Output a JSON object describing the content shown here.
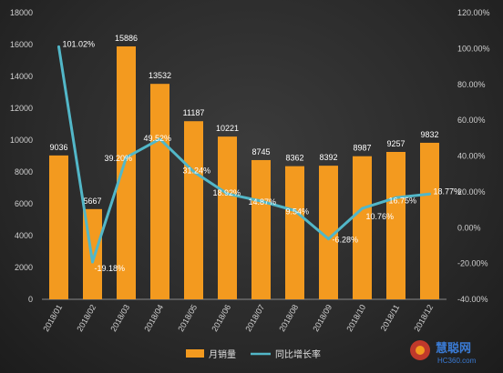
{
  "chart_data": {
    "type": "bar+line",
    "categories": [
      "2018/01",
      "2018/02",
      "2018/03",
      "2018/04",
      "2018/05",
      "2018/06",
      "2018/07",
      "2018/08",
      "2018/09",
      "2018/10",
      "2018/11",
      "2018/12"
    ],
    "series": [
      {
        "name": "月销量",
        "type": "bar",
        "axis": "left",
        "values": [
          9036,
          5667,
          15886,
          13532,
          11187,
          10221,
          8745,
          8362,
          8392,
          8987,
          9257,
          9832
        ],
        "labels": [
          "9036",
          "5667",
          "15886",
          "13532",
          "11187",
          "10221",
          "8745",
          "8362",
          "8392",
          "8987",
          "9257",
          "9832"
        ],
        "color": "#f39a1f"
      },
      {
        "name": "同比增长率",
        "type": "line",
        "axis": "right",
        "values": [
          101.02,
          -19.18,
          39.2,
          49.52,
          31.24,
          18.92,
          14.87,
          9.54,
          -6.28,
          10.76,
          16.75,
          18.77
        ],
        "labels": [
          "101.02%",
          "-19.18%",
          "39.20%",
          "49.52%",
          "31.24%",
          "18.92%",
          "14.87%",
          "9.54%",
          "-6.28%",
          "10.76%",
          "16.75%",
          "18.77%"
        ],
        "color": "#52b7c8"
      }
    ],
    "ylim_left": [
      0,
      18000
    ],
    "yticks_left": [
      "0",
      "2000",
      "4000",
      "6000",
      "8000",
      "10000",
      "12000",
      "14000",
      "16000",
      "18000"
    ],
    "ylim_right": [
      -40,
      120
    ],
    "yticks_right": [
      "-40.00%",
      "-20.00%",
      "0.00%",
      "20.00%",
      "40.00%",
      "60.00%",
      "80.00%",
      "100.00%",
      "120.00%"
    ],
    "grid": false,
    "legend_position": "bottom"
  },
  "watermark": {
    "text": "慧聪网",
    "subtext": "HC360.com"
  }
}
